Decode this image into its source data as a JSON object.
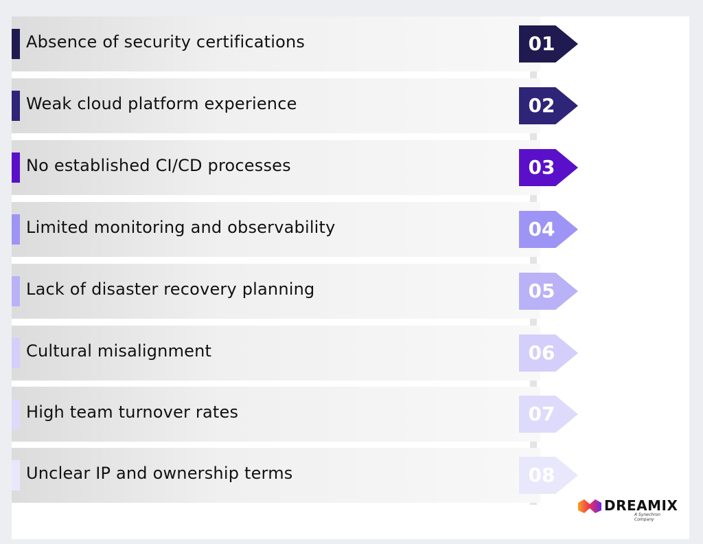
{
  "items": [
    {
      "number": "01",
      "label": "Absence of security certifications",
      "color": "#1f1a4f"
    },
    {
      "number": "02",
      "label": "Weak cloud platform experience",
      "color": "#2e2478"
    },
    {
      "number": "03",
      "label": "No established CI/CD processes",
      "color": "#5a10c8"
    },
    {
      "number": "04",
      "label": "Limited monitoring and observability",
      "color": "#9e94f5"
    },
    {
      "number": "05",
      "label": "Lack of disaster recovery planning",
      "color": "#b9b2f7"
    },
    {
      "number": "06",
      "label": "Cultural misalignment",
      "color": "#d3cefa"
    },
    {
      "number": "07",
      "label": "High team turnover rates",
      "color": "#dedafb"
    },
    {
      "number": "08",
      "label": "Unclear IP and ownership terms",
      "color": "#e9e7fc"
    }
  ],
  "logo": {
    "name": "DREAMIX",
    "tagline": "A Synechron Company"
  }
}
